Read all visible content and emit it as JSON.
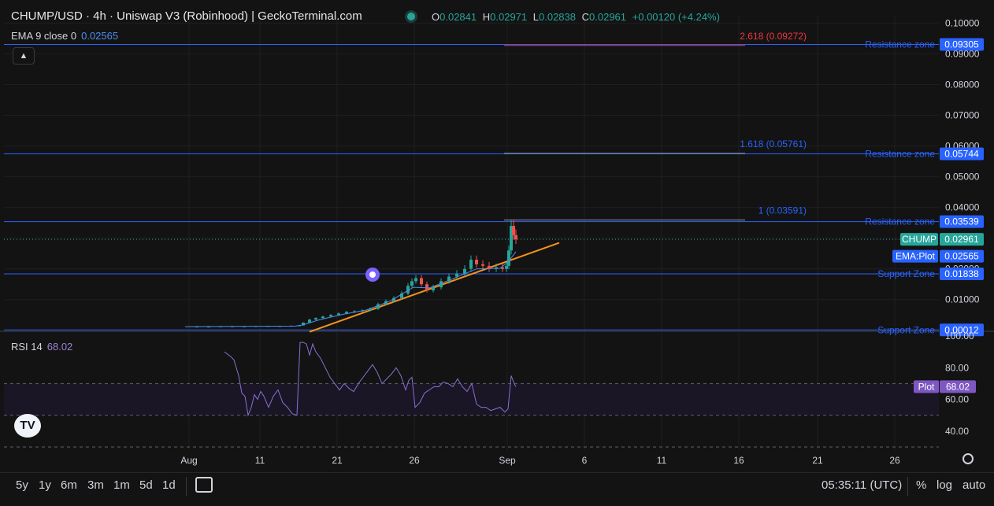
{
  "header": {
    "title": "CHUMP/USD · 4h · Uniswap V3 (Robinhood) | GeckoTerminal.com",
    "ohlc": {
      "o_label": "O",
      "o": "0.02841",
      "h_label": "H",
      "h": "0.02971",
      "l_label": "L",
      "l": "0.02838",
      "c_label": "C",
      "c": "0.02961",
      "change": "+0.00120 (+4.24%)"
    }
  },
  "indicators": {
    "ema": {
      "label": "EMA 9 close 0",
      "value": "0.02565"
    },
    "rsi": {
      "label": "RSI 14",
      "value": "68.02"
    }
  },
  "colors": {
    "up": "#26a69a",
    "down": "#ef5350",
    "zone": "#2962ff",
    "trend": "#f7931a",
    "fib_top": "#f23645",
    "ema": "#4d8df0",
    "rsi": "#8b6fd4"
  },
  "chart_data": {
    "type": "line",
    "price_axis": {
      "ticks": [
        "0.10000",
        "0.09000",
        "0.08000",
        "0.07000",
        "0.06000",
        "0.05000",
        "0.04000",
        "0.03000",
        "0.02000",
        "0.01000"
      ],
      "ylim": [
        0.0002,
        0.1024
      ]
    },
    "time_axis": {
      "ticks": [
        "Aug",
        "11",
        "21",
        "26",
        "Sep",
        "6",
        "11",
        "16",
        "21",
        "26"
      ]
    },
    "zones": [
      {
        "label": "Resistance zone",
        "value": "0.09305",
        "y": 0.09305
      },
      {
        "label": "Resistance zone",
        "value": "0.05744",
        "y": 0.05744
      },
      {
        "label": "Resistance zone",
        "value": "0.03539",
        "y": 0.03539
      },
      {
        "label": "Support Zone",
        "value": "0.01838",
        "y": 0.01838
      },
      {
        "label": "Support Zone",
        "value": "0.00012",
        "y": 0.00012
      }
    ],
    "fib_levels": [
      {
        "label": "2.618 (0.09272)",
        "y": 0.09272
      },
      {
        "label": "1.618 (0.05761)",
        "y": 0.05761
      },
      {
        "label": "1 (0.03591)",
        "y": 0.03591
      }
    ],
    "last_price": {
      "label": "CHUMP",
      "value": "0.02961",
      "y": 0.02961
    },
    "ema_tag": {
      "label": "EMA:Plot",
      "value": "0.02565",
      "y": 0.02565
    },
    "price_series": [
      [
        0,
        0.0012
      ],
      [
        15,
        0.0012
      ],
      [
        30,
        0.0012
      ],
      [
        45,
        0.0013
      ],
      [
        60,
        0.0013
      ],
      [
        75,
        0.0013
      ],
      [
        90,
        0.0014
      ],
      [
        105,
        0.0014
      ],
      [
        120,
        0.0014
      ],
      [
        135,
        0.0015
      ],
      [
        145,
        0.0016
      ],
      [
        150,
        0.0025
      ],
      [
        158,
        0.0035
      ],
      [
        166,
        0.004
      ],
      [
        175,
        0.0045
      ],
      [
        185,
        0.005
      ],
      [
        195,
        0.0055
      ],
      [
        205,
        0.006
      ],
      [
        215,
        0.0062
      ],
      [
        225,
        0.0065
      ],
      [
        235,
        0.007
      ],
      [
        245,
        0.0085
      ],
      [
        255,
        0.0095
      ],
      [
        265,
        0.0105
      ],
      [
        275,
        0.012
      ],
      [
        283,
        0.0145
      ],
      [
        288,
        0.016
      ],
      [
        293,
        0.017
      ],
      [
        300,
        0.015
      ],
      [
        307,
        0.013
      ],
      [
        315,
        0.014
      ],
      [
        325,
        0.016
      ],
      [
        335,
        0.0175
      ],
      [
        345,
        0.0185
      ],
      [
        355,
        0.02
      ],
      [
        363,
        0.023
      ],
      [
        370,
        0.0215
      ],
      [
        378,
        0.021
      ],
      [
        386,
        0.02
      ],
      [
        395,
        0.0205
      ],
      [
        403,
        0.02
      ],
      [
        408,
        0.021
      ],
      [
        411,
        0.026
      ],
      [
        414,
        0.034
      ],
      [
        417,
        0.031
      ],
      [
        420,
        0.0296
      ]
    ],
    "ema_series": [
      [
        0,
        0.0012
      ],
      [
        140,
        0.0014
      ],
      [
        150,
        0.0018
      ],
      [
        170,
        0.0034
      ],
      [
        200,
        0.0052
      ],
      [
        230,
        0.0066
      ],
      [
        260,
        0.0095
      ],
      [
        290,
        0.014
      ],
      [
        310,
        0.0138
      ],
      [
        340,
        0.0168
      ],
      [
        370,
        0.02
      ],
      [
        400,
        0.0202
      ],
      [
        411,
        0.0225
      ],
      [
        420,
        0.0256
      ]
    ],
    "trendline": {
      "from": [
        158,
        -0.0005
      ],
      "to": [
        475,
        0.0285
      ]
    },
    "rsi_pane": {
      "ticks": [
        "100.00",
        "80.00",
        "60.00",
        "40.00"
      ],
      "ylim": [
        28,
        102
      ],
      "bands": [
        70,
        50,
        30
      ],
      "series": [
        [
          50,
          90
        ],
        [
          58,
          87
        ],
        [
          62,
          85
        ],
        [
          68,
          75
        ],
        [
          72,
          64
        ],
        [
          76,
          62
        ],
        [
          80,
          50
        ],
        [
          84,
          55
        ],
        [
          88,
          63
        ],
        [
          92,
          60
        ],
        [
          96,
          65
        ],
        [
          100,
          62
        ],
        [
          106,
          55
        ],
        [
          112,
          62
        ],
        [
          118,
          66
        ],
        [
          124,
          58
        ],
        [
          130,
          55
        ],
        [
          136,
          51
        ],
        [
          142,
          50
        ],
        [
          146,
          96
        ],
        [
          150,
          96
        ],
        [
          154,
          95
        ],
        [
          158,
          88
        ],
        [
          162,
          95
        ],
        [
          166,
          90
        ],
        [
          172,
          86
        ],
        [
          178,
          80
        ],
        [
          184,
          74
        ],
        [
          190,
          70
        ],
        [
          196,
          66
        ],
        [
          202,
          70
        ],
        [
          208,
          67
        ],
        [
          214,
          65
        ],
        [
          220,
          70
        ],
        [
          226,
          74
        ],
        [
          232,
          78
        ],
        [
          238,
          82
        ],
        [
          244,
          77
        ],
        [
          250,
          70
        ],
        [
          256,
          73
        ],
        [
          262,
          76
        ],
        [
          268,
          80
        ],
        [
          274,
          75
        ],
        [
          280,
          66
        ],
        [
          284,
          72
        ],
        [
          288,
          74
        ],
        [
          292,
          55
        ],
        [
          298,
          58
        ],
        [
          304,
          64
        ],
        [
          310,
          66
        ],
        [
          316,
          68
        ],
        [
          322,
          68
        ],
        [
          328,
          71
        ],
        [
          334,
          70
        ],
        [
          340,
          68
        ],
        [
          346,
          73
        ],
        [
          352,
          68
        ],
        [
          358,
          65
        ],
        [
          364,
          70
        ],
        [
          370,
          57
        ],
        [
          376,
          55
        ],
        [
          382,
          55
        ],
        [
          388,
          53
        ],
        [
          394,
          54
        ],
        [
          400,
          55
        ],
        [
          406,
          52
        ],
        [
          410,
          54
        ],
        [
          414,
          75
        ],
        [
          417,
          71
        ],
        [
          420,
          68
        ]
      ],
      "value_tag": {
        "label": "Plot",
        "value": "68.02",
        "y": 68.02
      }
    }
  },
  "bottom": {
    "ranges": [
      "5y",
      "1y",
      "6m",
      "3m",
      "1m",
      "5d",
      "1d"
    ],
    "clock": "05:35:11 (UTC)",
    "opts": [
      "%",
      "log",
      "auto"
    ],
    "logo": "TV"
  }
}
